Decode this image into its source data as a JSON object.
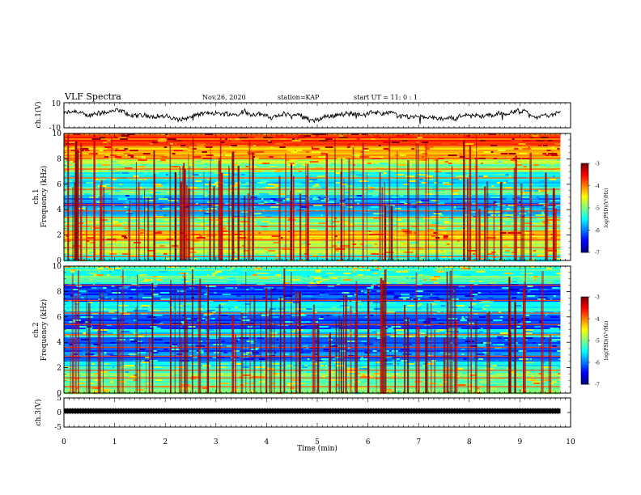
{
  "header": {
    "title": "VLF Spectra",
    "date": "Nov.26, 2020",
    "station": "station=KAP",
    "start": "start  UT =  11: 0  : 1"
  },
  "chart_data": [
    {
      "type": "line",
      "panel": "ch1-waveform",
      "ylabel": "ch.1(V)",
      "ylim": [
        -10,
        10
      ],
      "yticks": [
        "10",
        "-10"
      ],
      "xlim": [
        0,
        10
      ],
      "series_color": "#000000",
      "note_values": "waveform fluctuates roughly between -6 and +6 V over 0-9.8 min"
    },
    {
      "type": "heatmap",
      "panel": "ch1-spectrogram",
      "ylabel": "ch.1\nFrequency (kHz)",
      "ylim": [
        0,
        10
      ],
      "yticks": [
        "0",
        "2",
        "4",
        "6",
        "8",
        "10"
      ],
      "xlim": [
        0,
        10
      ],
      "data_extent_min": 9.8,
      "colorbar": {
        "label": "log(PSD)(V²/Hz)",
        "range": [
          -7,
          -3
        ],
        "ticks": [
          "-3",
          "-4",
          "-5",
          "-6",
          "-7"
        ]
      },
      "bands": [
        {
          "f0": 0.0,
          "f1": 0.5,
          "level": -5.2
        },
        {
          "f0": 0.5,
          "f1": 1.6,
          "level": -4.8
        },
        {
          "f0": 1.6,
          "f1": 2.4,
          "level": -4.3
        },
        {
          "f0": 2.4,
          "f1": 3.4,
          "level": -5.0
        },
        {
          "f0": 3.4,
          "f1": 4.2,
          "level": -5.8
        },
        {
          "f0": 4.2,
          "f1": 5.2,
          "level": -6.0
        },
        {
          "f0": 5.2,
          "f1": 6.0,
          "level": -5.3
        },
        {
          "f0": 6.0,
          "f1": 7.0,
          "level": -5.5
        },
        {
          "f0": 7.0,
          "f1": 8.0,
          "level": -4.9
        },
        {
          "f0": 8.0,
          "f1": 9.0,
          "level": -4.2
        },
        {
          "f0": 9.0,
          "f1": 10.0,
          "level": -3.8
        }
      ],
      "lines_khz": [
        0.3,
        1.0,
        1.6,
        2.0,
        2.3,
        2.7,
        3.4,
        3.9,
        4.4,
        5.6,
        6.5,
        7.2
      ]
    },
    {
      "type": "heatmap",
      "panel": "ch2-spectrogram",
      "ylabel": "ch.2\nFrequency (kHz)",
      "ylim": [
        0,
        10
      ],
      "yticks": [
        "0",
        "2",
        "4",
        "6",
        "8",
        "10"
      ],
      "xlim": [
        0,
        10
      ],
      "data_extent_min": 9.8,
      "colorbar": {
        "label": "log(PSD)(V²/Hz)",
        "range": [
          -7,
          -3
        ],
        "ticks": [
          "-3",
          "-4",
          "-5",
          "-6",
          "-7"
        ]
      },
      "bands": [
        {
          "f0": 0.0,
          "f1": 0.5,
          "level": -5.0
        },
        {
          "f0": 0.5,
          "f1": 1.6,
          "level": -5.0
        },
        {
          "f0": 1.6,
          "f1": 2.5,
          "level": -5.4
        },
        {
          "f0": 2.5,
          "f1": 3.4,
          "level": -6.1
        },
        {
          "f0": 3.4,
          "f1": 4.4,
          "level": -6.3
        },
        {
          "f0": 4.4,
          "f1": 5.0,
          "level": -5.6
        },
        {
          "f0": 5.0,
          "f1": 6.2,
          "level": -6.3
        },
        {
          "f0": 6.2,
          "f1": 7.2,
          "level": -5.6
        },
        {
          "f0": 7.2,
          "f1": 8.6,
          "level": -6.3
        },
        {
          "f0": 8.6,
          "f1": 10.0,
          "level": -5.2
        }
      ],
      "lines_khz": [
        0.5,
        1.2,
        1.8,
        2.9,
        3.6,
        4.6,
        5.4,
        6.3,
        7.3,
        8.5
      ]
    },
    {
      "type": "line",
      "panel": "ch3-waveform",
      "ylabel": "ch.3(V)",
      "ylim": [
        -5,
        5
      ],
      "yticks": [
        "5",
        "0",
        "-5"
      ],
      "xlim": [
        0,
        10
      ],
      "level_v": 0.5,
      "xlabel": "Time  (min)",
      "xticks": [
        "0",
        "1",
        "2",
        "3",
        "4",
        "5",
        "6",
        "7",
        "8",
        "9",
        "10"
      ]
    }
  ]
}
